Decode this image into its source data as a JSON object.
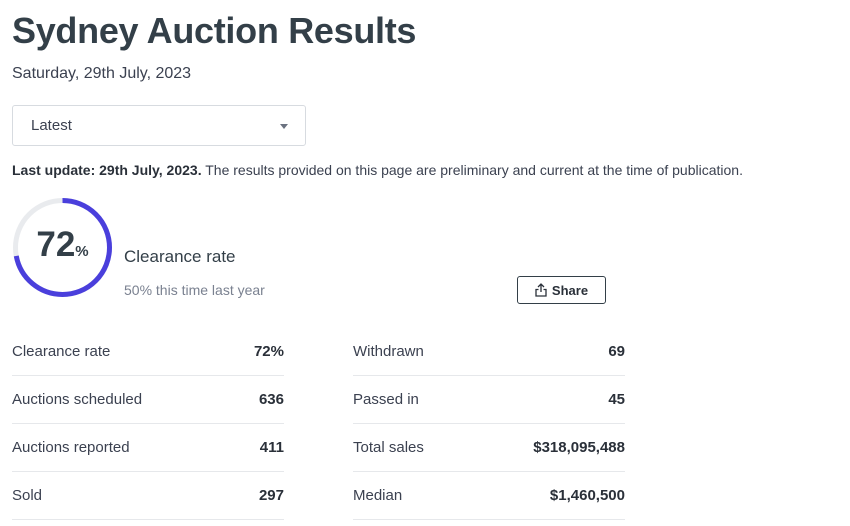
{
  "header": {
    "title": "Sydney Auction Results",
    "date": "Saturday, 29th July, 2023"
  },
  "filter": {
    "selected": "Latest"
  },
  "update": {
    "label": "Last update: 29th July, 2023.",
    "text": "The results provided on this page are preliminary and current at the time of publication."
  },
  "summary": {
    "clearance_percent": 72,
    "clearance_number": "72",
    "clearance_unit": "%",
    "clearance_label": "Clearance rate",
    "comparison": "50% this time last year",
    "ring_color": "#4a3fdc",
    "ring_track_color": "#e9ebee"
  },
  "share": {
    "label": "Share"
  },
  "stats_left": [
    {
      "label": "Clearance rate",
      "value": "72%"
    },
    {
      "label": "Auctions scheduled",
      "value": "636"
    },
    {
      "label": "Auctions reported",
      "value": "411"
    },
    {
      "label": "Sold",
      "value": "297"
    }
  ],
  "stats_right": [
    {
      "label": "Withdrawn",
      "value": "69"
    },
    {
      "label": "Passed in",
      "value": "45"
    },
    {
      "label": "Total sales",
      "value": "$318,095,488"
    },
    {
      "label": "Median",
      "value": "$1,460,500"
    }
  ]
}
